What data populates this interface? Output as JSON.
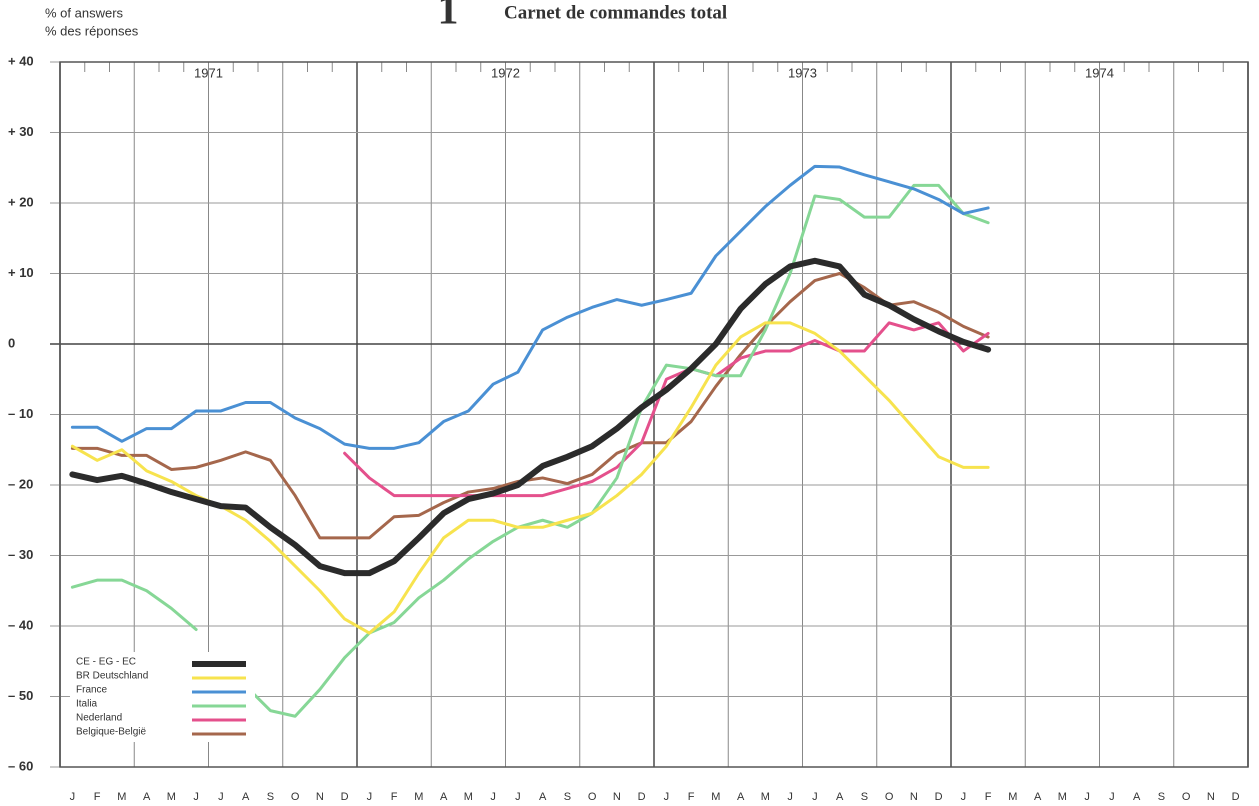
{
  "chart_data": {
    "type": "line",
    "title": "1",
    "subtitle": "Carnet  de commandes total",
    "y_label": [
      "% of answers",
      "% des réponses"
    ],
    "categories": [
      "J",
      "F",
      "M",
      "A",
      "M",
      "J",
      "J",
      "A",
      "S",
      "O",
      "N",
      "D",
      "J",
      "F",
      "M",
      "A",
      "M",
      "J",
      "J",
      "A",
      "S",
      "O",
      "N",
      "D",
      "J",
      "F",
      "M",
      "A",
      "M",
      "J",
      "J",
      "A",
      "S",
      "O",
      "N",
      "D",
      "J",
      "F",
      "M",
      "A",
      "M",
      "J",
      "J",
      "A",
      "S",
      "O",
      "N",
      "D"
    ],
    "annotations": [
      "1971",
      "1972",
      "1973",
      "1974"
    ],
    "ylim": [
      -60,
      40
    ],
    "yticks": [
      {
        "value": 40,
        "label": "+ 40"
      },
      {
        "value": 30,
        "label": "+ 30"
      },
      {
        "value": 20,
        "label": "+ 20"
      },
      {
        "value": 10,
        "label": "+ 10"
      },
      0,
      {
        "value": -10,
        "label": "– 10"
      },
      {
        "value": -20,
        "label": "– 20"
      },
      {
        "value": -30,
        "label": "– 30"
      },
      {
        "value": -40,
        "label": "– 40"
      },
      {
        "value": -50,
        "label": "– 50"
      },
      {
        "value": -60,
        "label": "– 60"
      }
    ],
    "grid": true,
    "legend": "lower left",
    "series": [
      {
        "name": "CE - EG - EC",
        "color": "#2b2b2b",
        "width": 6,
        "values": [
          -18.5,
          -19.3,
          -18.7,
          -19.8,
          -21,
          -22,
          -23,
          -23.2,
          -26,
          -28.5,
          -31.5,
          -32.5,
          -32.5,
          -30.8,
          -27.5,
          -24,
          -22,
          -21.2,
          -20,
          -17.3,
          -16,
          -14.5,
          -12,
          -9,
          -6.5,
          -3.5,
          0,
          5,
          8.5,
          11,
          11.8,
          11,
          7,
          5.5,
          3.5,
          1.8,
          0.3,
          -0.8,
          null,
          null,
          null,
          null,
          null,
          null,
          null,
          null,
          null,
          null
        ]
      },
      {
        "name": "BR  Deutschland",
        "color": "#f7e34e",
        "width": 3,
        "values": [
          -14.5,
          -16.5,
          -15,
          -18,
          -19.5,
          -21.5,
          -23,
          -25,
          -28,
          -31.5,
          -35,
          -39,
          -41,
          -38,
          -32.5,
          -27.5,
          -25,
          -25,
          -26,
          -26,
          -25,
          -24,
          -21.5,
          -18.5,
          -14.5,
          -9,
          -3,
          1,
          3,
          3,
          1.5,
          -1,
          -4.5,
          -8,
          -12,
          -16,
          -17.5,
          -17.5,
          null,
          null,
          null,
          null,
          null,
          null,
          null,
          null,
          null,
          null
        ]
      },
      {
        "name": "France",
        "color": "#4a90d4",
        "width": 3,
        "values": [
          -11.8,
          -11.8,
          -13.8,
          -12,
          -12,
          -9.5,
          -9.5,
          -8.3,
          -8.3,
          -10.5,
          -12,
          -14.2,
          -14.8,
          -14.8,
          -14,
          -11,
          -9.5,
          -5.7,
          -4,
          2,
          3.8,
          5.2,
          6.3,
          5.5,
          6.3,
          7.2,
          12.5,
          16,
          19.5,
          22.5,
          25.2,
          25.1,
          24,
          23,
          22,
          20.5,
          18.5,
          19.3,
          null,
          null,
          null,
          null,
          null,
          null,
          null,
          null,
          null,
          null
        ]
      },
      {
        "name": "Italia",
        "color": "#86d796",
        "width": 3,
        "values": [
          -34.5,
          -33.5,
          -33.5,
          -35,
          -37.5,
          -40.5,
          null,
          -48.5,
          -52,
          -52.8,
          -49,
          -44.5,
          -41,
          -39.5,
          -36,
          -33.5,
          -30.5,
          -28,
          -26,
          -25,
          -26,
          -24,
          -19,
          -9,
          -3,
          -3.5,
          -4.5,
          -4.5,
          2,
          10,
          21,
          20.5,
          18,
          18,
          22.5,
          22.5,
          18.5,
          17.2,
          null,
          null,
          null,
          null,
          null,
          null,
          null,
          null,
          null,
          null
        ]
      },
      {
        "name": "Nederland",
        "color": "#e4508c",
        "width": 3,
        "values": [
          null,
          null,
          null,
          null,
          null,
          null,
          null,
          null,
          null,
          null,
          null,
          -15.5,
          -19,
          -21.5,
          -21.5,
          -21.5,
          -21.5,
          -21.5,
          -21.5,
          -21.5,
          -20.5,
          -19.5,
          -17.5,
          -14,
          -5,
          -3.5,
          -4.5,
          -2,
          -1,
          -1,
          0.5,
          -1,
          -1,
          3,
          2,
          3,
          -1,
          1.5,
          null,
          null,
          null,
          null,
          null,
          null,
          null,
          null,
          null,
          null
        ]
      },
      {
        "name": "Belgique-België",
        "color": "#a5674c",
        "width": 3,
        "values": [
          -14.8,
          -14.8,
          -15.8,
          -15.8,
          -17.8,
          -17.5,
          -16.5,
          -15.3,
          -16.5,
          -21.5,
          -27.5,
          -27.5,
          -27.5,
          -24.5,
          -24.3,
          -22.5,
          -21,
          -20.5,
          -19.5,
          -19,
          -19.8,
          -18.5,
          -15.5,
          -14,
          -14,
          -11,
          -6,
          -1.5,
          2.5,
          6,
          9,
          10,
          8,
          5.5,
          6,
          4.5,
          2.5,
          1,
          null,
          null,
          null,
          null,
          null,
          null,
          null,
          null,
          null,
          null
        ]
      }
    ]
  }
}
